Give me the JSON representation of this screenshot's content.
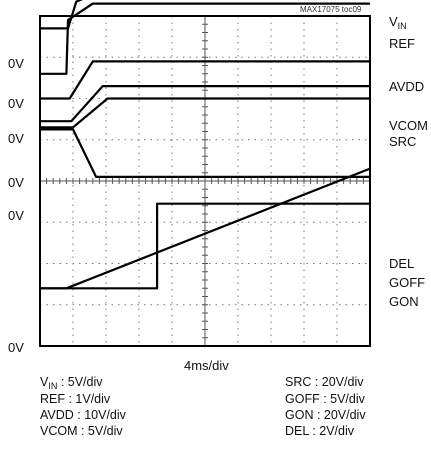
{
  "chart_data": {
    "type": "line",
    "figure_id": "MAX17075 toc09",
    "xlabel": "4ms/div",
    "grid": true,
    "x_divisions": 10,
    "y_divisions": 8,
    "zero_markers": [
      "0V",
      "0V",
      "0V",
      "0V",
      "0V",
      "0V"
    ],
    "right_labels": {
      "vin": {
        "main": "V",
        "sub": "IN"
      },
      "ref": "REF",
      "avdd": "AVDD",
      "vcom": "VCOM",
      "src": "SRC",
      "del": "DEL",
      "goff": "GOFF",
      "gon": "GON"
    },
    "series": [
      {
        "name": "VIN",
        "x_div": [
          0,
          0.85,
          1.1,
          1.7,
          10
        ],
        "y_div": [
          3.7,
          3.7,
          4.35,
          4.55,
          4.55
        ]
      },
      {
        "name": "REF",
        "x_div": [
          0,
          0.8,
          0.85,
          1.6,
          10
        ],
        "y_div": [
          2.6,
          2.6,
          3.9,
          4.3,
          4.3
        ]
      },
      {
        "name": "AVDD",
        "x_div": [
          0,
          0.9,
          1.6,
          10
        ],
        "y_div": [
          2.0,
          2.0,
          2.9,
          2.9
        ]
      },
      {
        "name": "VCOM",
        "x_div": [
          0,
          0.95,
          1.9,
          10
        ],
        "y_div": [
          1.45,
          1.45,
          2.3,
          2.3
        ]
      },
      {
        "name": "SRC",
        "x_div": [
          0,
          1.0,
          2.05,
          10
        ],
        "y_div": [
          1.3,
          1.3,
          2.0,
          2.0
        ]
      },
      {
        "name": "GOFF",
        "x_div": [
          0,
          1.0,
          1.7,
          10
        ],
        "y_div": [
          1.25,
          1.25,
          0.1,
          0.1
        ]
      },
      {
        "name": "GON",
        "x_div": [
          0,
          3.55,
          3.55,
          10
        ],
        "y_div": [
          -2.6,
          -2.6,
          -0.55,
          -0.55
        ]
      },
      {
        "name": "DEL",
        "x_div": [
          0,
          0.8,
          10
        ],
        "y_div": [
          -2.6,
          -2.6,
          0.3
        ]
      }
    ],
    "scales": [
      {
        "label": "V",
        "sub": "IN",
        "value": " : 5V/div"
      },
      {
        "label": "REF : 1V/div"
      },
      {
        "label": "AVDD : 10V/div"
      },
      {
        "label": "VCOM : 5V/div"
      },
      {
        "label": "SRC : 20V/div"
      },
      {
        "label": "GOFF : 5V/div"
      },
      {
        "label": "GON : 20V/div"
      },
      {
        "label": "DEL : 2V/div"
      }
    ]
  }
}
